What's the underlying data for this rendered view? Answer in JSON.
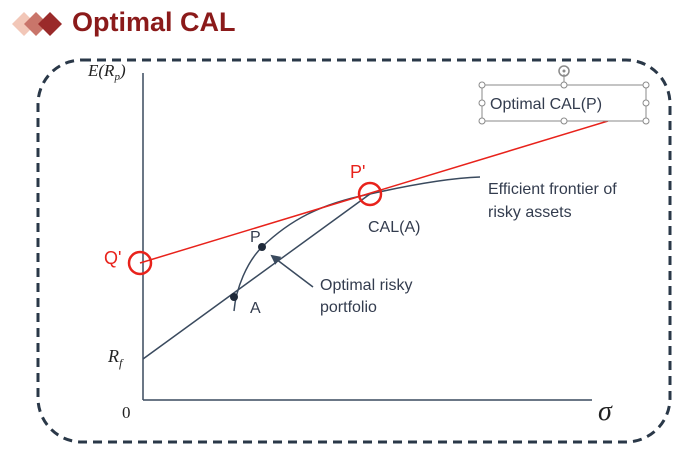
{
  "title": "Optimal CAL",
  "colors": {
    "title": "#8b1a1a",
    "accent": "#e8221b",
    "line": "#3a4a5e",
    "border": "#2a3848",
    "diamond_light": "#f2c7b8",
    "diamond_mid": "#c9756a",
    "diamond_dark": "#9a2a2a"
  },
  "axes": {
    "y_label": "E(R",
    "y_label_sub": "p",
    "y_label_close": ")",
    "x_label": "σ",
    "origin": "0",
    "rf_label": "R",
    "rf_sub": "f"
  },
  "labels": {
    "p_prime": "P'",
    "q_prime": "Q'",
    "p": "P",
    "a": "A",
    "cal_a": "CAL(A)",
    "frontier_line1": "Efficient frontier of",
    "frontier_line2": "risky assets",
    "optimal_risky_line1": "Optimal risky",
    "optimal_risky_line2": "portfolio",
    "cal_p": "Optimal CAL(P)"
  }
}
